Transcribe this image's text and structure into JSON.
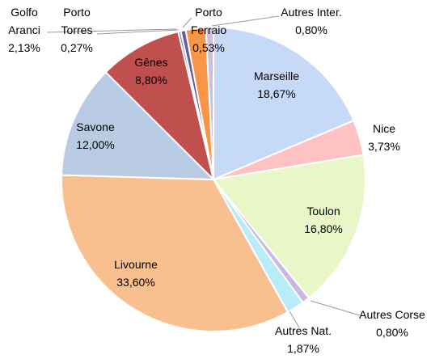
{
  "chart_data": {
    "type": "pie",
    "categories": [
      "Marseille",
      "Nice",
      "Toulon",
      "Autres Corse",
      "Autres Nat.",
      "Livourne",
      "Savone",
      "Gênes",
      "Porto Torres",
      "Porto Ferraio",
      "Golfo Aranci",
      "Autres Inter."
    ],
    "values": [
      18.67,
      3.73,
      16.8,
      0.8,
      1.87,
      33.6,
      12.0,
      8.8,
      0.27,
      0.53,
      2.13,
      0.8
    ],
    "value_labels": [
      "18,67%",
      "3,73%",
      "16,80%",
      "0,80%",
      "1,87%",
      "33,60%",
      "12,00%",
      "8,80%",
      "0,27%",
      "0,53%",
      "2,13%",
      "0,80%"
    ],
    "colors": [
      "#c6d9f7",
      "#ffc2c2",
      "#e8f6c8",
      "#cbb8e2",
      "#b9ecf9",
      "#f9c08f",
      "#b9cbe3",
      "#c0504d",
      "#4f81bd",
      "#6d5a9a",
      "#f79646",
      "#cdbfdc"
    ]
  }
}
